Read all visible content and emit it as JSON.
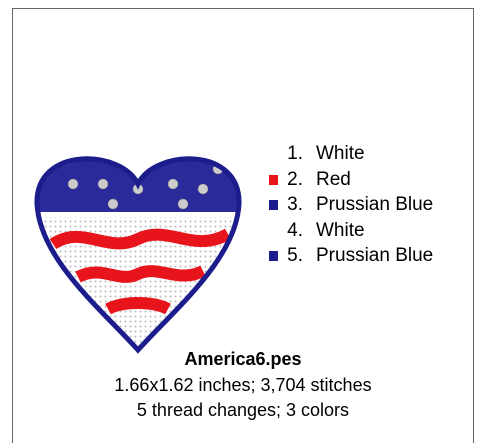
{
  "threads": [
    {
      "number": "1.",
      "name": "White",
      "swatch": "#ffffff"
    },
    {
      "number": "2.",
      "name": "Red",
      "swatch": "#e8141c"
    },
    {
      "number": "3.",
      "name": "Prussian Blue",
      "swatch": "#1c1c8c"
    },
    {
      "number": "4.",
      "name": "White",
      "swatch": "#ffffff"
    },
    {
      "number": "5.",
      "name": "Prussian Blue",
      "swatch": "#1c1c8c"
    }
  ],
  "caption": {
    "filename": "America6.pes",
    "size": "1.66x1.62 inches; 3,704 stitches",
    "changes": "5 thread changes; 3 colors"
  }
}
